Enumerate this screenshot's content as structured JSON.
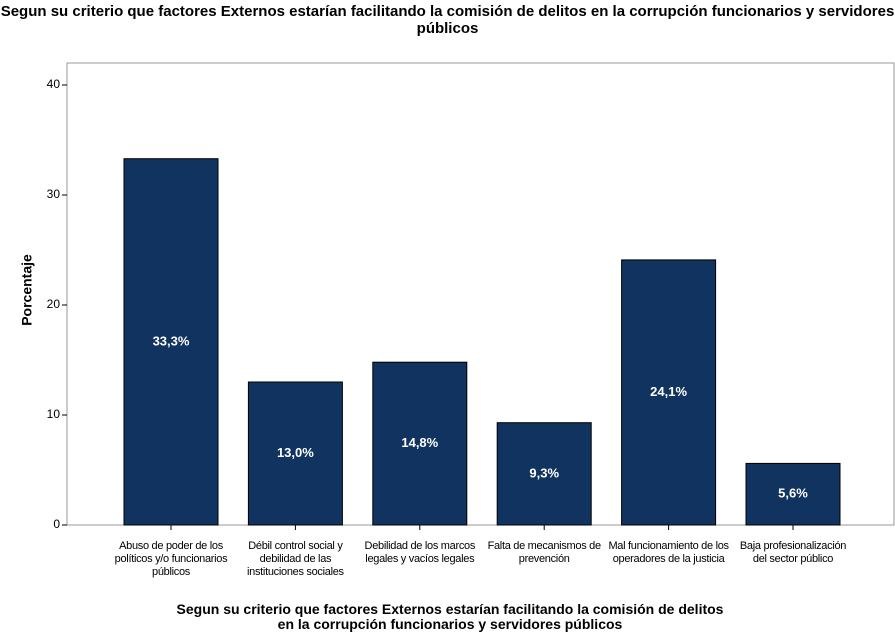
{
  "chart_data": {
    "type": "bar",
    "title": "Segun su criterio que factores Externos estarían facilitando la comisión de delitos en la corrupción funcionarios y servidores públicos",
    "x_label": "Segun su criterio que factores Externos estarían facilitando la comisión de delitos en la corrupción funcionarios y servidores públicos",
    "y_label": "Porcentaje",
    "categories": [
      "Abuso de poder de los políticos y/o funcionarios públicos",
      "Débil control social y debilidad de las instituciones sociales",
      "Debilidad de los marcos legales y vacíos legales",
      "Falta de mecanismos de prevención",
      "Mal funcionamiento de los operadores de la justicia",
      "Baja profesionalización del sector público"
    ],
    "values": [
      33.3,
      13.0,
      14.8,
      9.3,
      24.1,
      5.6
    ],
    "value_labels": [
      "33,3%",
      "13,0%",
      "14,8%",
      "9,3%",
      "24,1%",
      "5,6%"
    ],
    "color": "#11335f",
    "ylim": [
      0,
      42
    ],
    "yticks": [
      0,
      10,
      20,
      30,
      40
    ],
    "grid": false
  }
}
